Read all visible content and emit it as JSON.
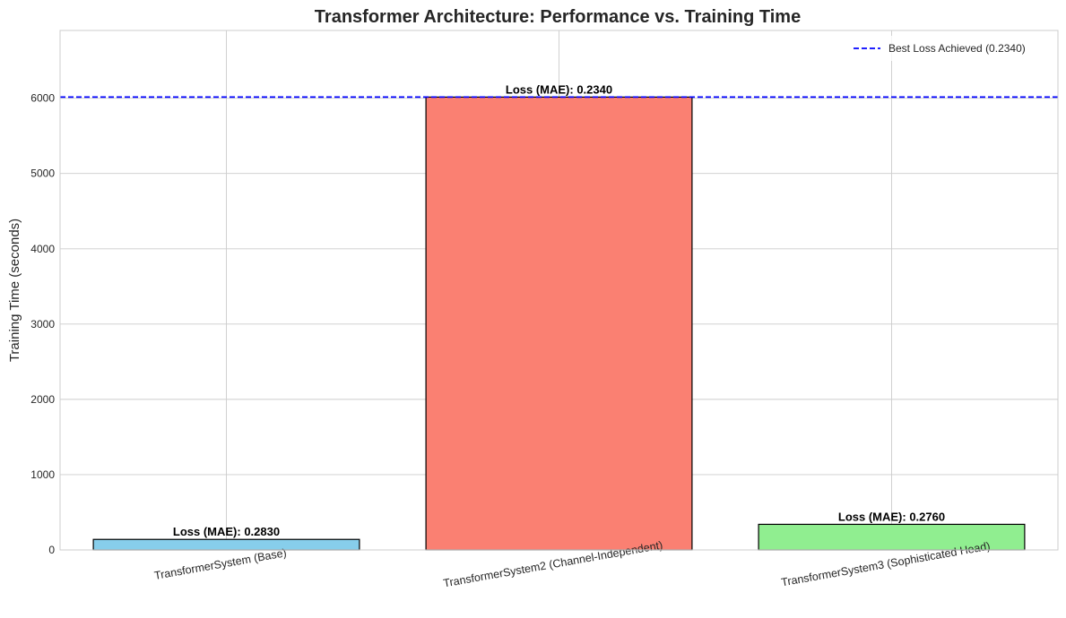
{
  "chart_data": {
    "type": "bar",
    "title": "Transformer Architecture: Performance vs. Training Time",
    "xlabel": "",
    "ylabel": "Training Time (seconds)",
    "categories": [
      "TransformerSystem (Base)",
      "TransformerSystem2 (Channel-Independent)",
      "TransformerSystem3 (Sophisticated Head)"
    ],
    "values": [
      140,
      6015,
      340
    ],
    "bar_labels": [
      "Loss (MAE): 0.2830",
      "Loss (MAE): 0.2340",
      "Loss (MAE): 0.2760"
    ],
    "colors": [
      "#87ceeb",
      "#fa8072",
      "#90ee90"
    ],
    "ylim": [
      0,
      6900
    ],
    "yticks": [
      0,
      1000,
      2000,
      3000,
      4000,
      5000,
      6000
    ],
    "reference_line": {
      "value": 6015,
      "label": "Best Loss Achieved (0.2340)",
      "color": "#0000ff",
      "style": "dashed"
    },
    "grid": true,
    "legend_position": "top-right"
  }
}
